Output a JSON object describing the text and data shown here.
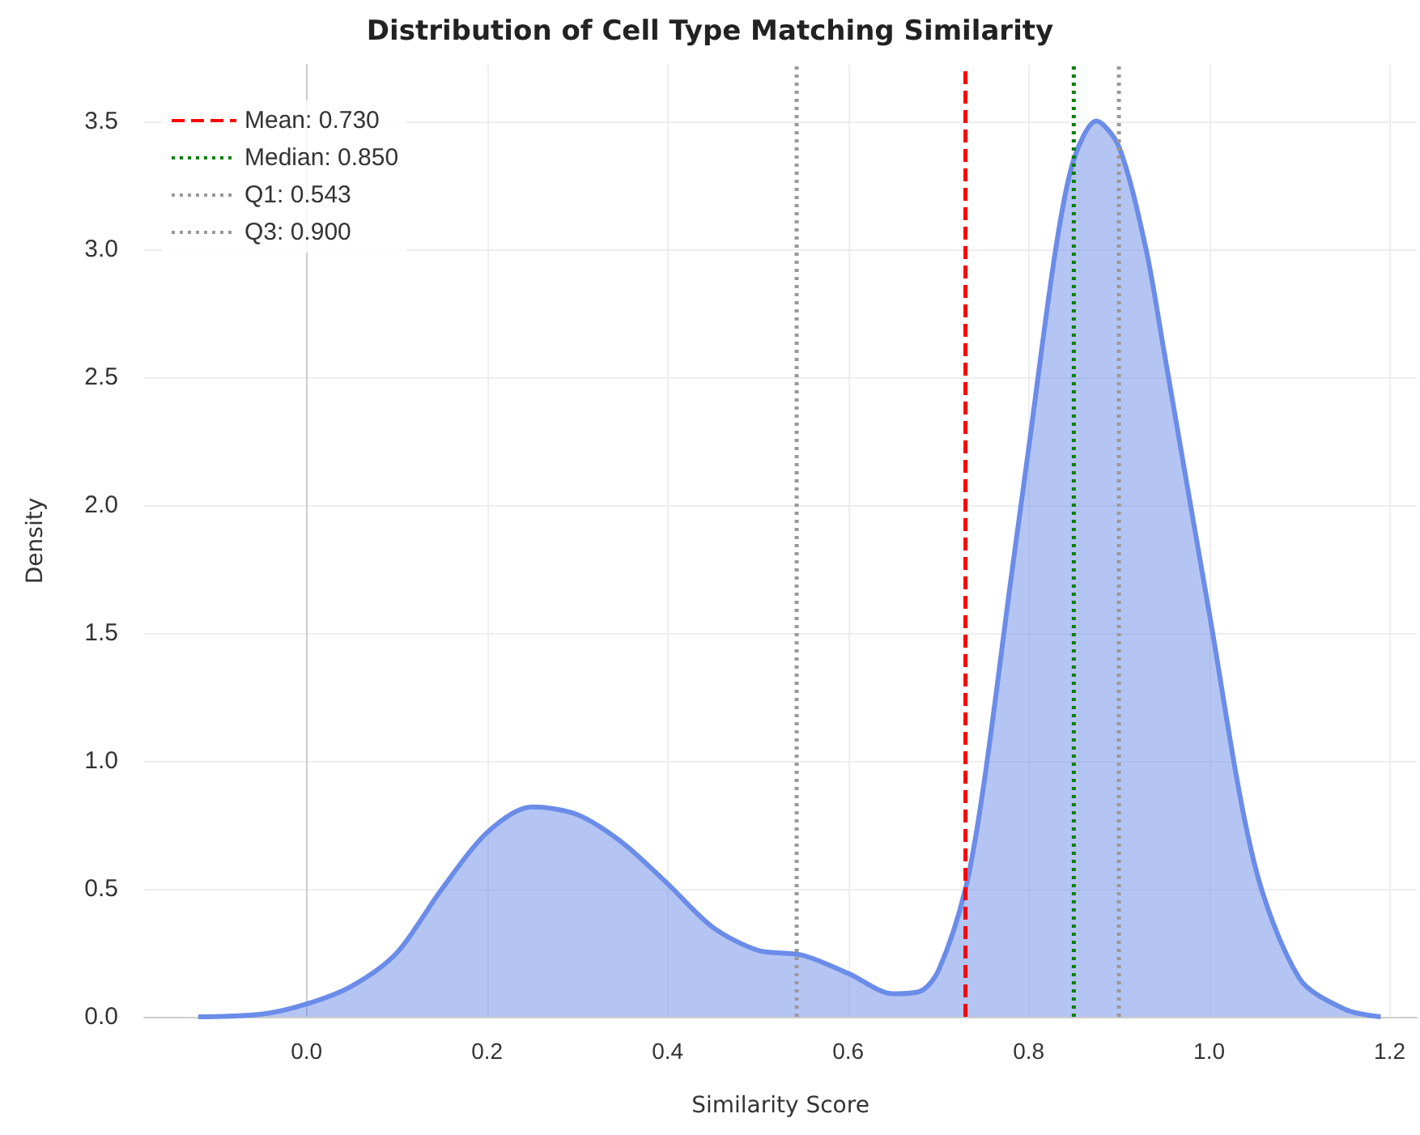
{
  "chart_data": {
    "type": "area",
    "title": "Distribution of Cell Type Matching Similarity",
    "xlabel": "Similarity Score",
    "ylabel": "Density",
    "x": [
      -0.12,
      -0.05,
      0.0,
      0.05,
      0.1,
      0.15,
      0.2,
      0.25,
      0.3,
      0.35,
      0.4,
      0.45,
      0.5,
      0.55,
      0.6,
      0.65,
      0.68,
      0.7,
      0.73,
      0.75,
      0.78,
      0.8,
      0.83,
      0.85,
      0.875,
      0.9,
      0.93,
      0.95,
      1.0,
      1.05,
      1.1,
      1.15,
      1.19
    ],
    "series": [
      {
        "color": "#6b8ce8",
        "values": [
          0.0,
          0.01,
          0.05,
          0.12,
          0.25,
          0.5,
          0.72,
          0.82,
          0.79,
          0.68,
          0.52,
          0.35,
          0.26,
          0.24,
          0.17,
          0.09,
          0.1,
          0.18,
          0.5,
          0.9,
          1.7,
          2.22,
          3.0,
          3.35,
          3.5,
          3.4,
          3.0,
          2.6,
          1.58,
          0.6,
          0.15,
          0.03,
          0.0
        ]
      },
      {
        "name": "Mean: 0.730",
        "type": "line",
        "color": "#ff0000",
        "line_style": "dashed",
        "x": [
          0.73,
          0.73
        ],
        "values": [
          0,
          3.72
        ]
      },
      {
        "name": "Median: 0.850",
        "type": "line",
        "color": "#008000",
        "line_style": "dotted",
        "x": [
          0.85,
          0.85
        ],
        "values": [
          0,
          3.72
        ]
      },
      {
        "name": "Q1: 0.543",
        "type": "line",
        "color": "#999999",
        "line_style": "dotted",
        "x": [
          0.543,
          0.543
        ],
        "values": [
          0,
          3.72
        ]
      },
      {
        "name": "Q3: 0.900",
        "type": "line",
        "color": "#999999",
        "line_style": "dotted",
        "x": [
          0.9,
          0.9
        ],
        "values": [
          0,
          3.72
        ]
      }
    ],
    "xlim": [
      -0.18,
      1.23
    ],
    "ylim": [
      0,
      3.72
    ],
    "xticks": [
      {
        "value": 0,
        "label": "0.0"
      },
      0.2,
      0.4,
      0.6,
      0.8,
      {
        "value": 1,
        "label": "1.0"
      },
      1.2
    ],
    "yticks": [
      {
        "value": 0,
        "label": "0.0"
      },
      0.5,
      {
        "value": 1,
        "label": "1.0"
      },
      1.5,
      {
        "value": 2,
        "label": "2.0"
      },
      2.5,
      {
        "value": 3,
        "label": "3.0"
      },
      3.5
    ],
    "grid": true,
    "legend": "top left"
  }
}
